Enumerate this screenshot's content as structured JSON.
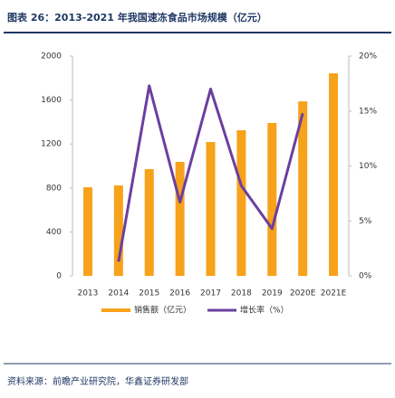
{
  "chart_data": {
    "type": "bar-line",
    "title": "图表 26：2013-2021 年我国速冻食品市场规模（亿元）",
    "source": "资料来源：前瞻产业研究院，华鑫证券研发部",
    "categories": [
      "2013",
      "2014",
      "2015",
      "2016",
      "2017",
      "2018",
      "2019",
      "2020E",
      "2021E"
    ],
    "series": [
      {
        "name": "销售额（亿元）",
        "type": "bar",
        "color": "#f7a21b",
        "values": [
          806,
          823,
          971,
          1037,
          1218,
          1325,
          1391,
          1588,
          1843
        ]
      },
      {
        "name": "增长率（%）",
        "type": "line",
        "axis": "y2",
        "color": "#6b3fa0",
        "values": [
          null,
          1.3,
          17.3,
          6.7,
          17.0,
          8.2,
          4.3,
          14.8,
          null
        ]
      }
    ],
    "ylim": [
      0,
      2000
    ],
    "yticks": [
      0,
      400,
      800,
      1200,
      1600,
      2000
    ],
    "y2lim": [
      0,
      20
    ],
    "y2ticks": [
      {
        "value": 0,
        "label": "0%"
      },
      {
        "value": 5,
        "label": "5%"
      },
      {
        "value": 10,
        "label": "10%"
      },
      {
        "value": 15,
        "label": "15%"
      },
      {
        "value": 20,
        "label": "20%"
      }
    ]
  }
}
